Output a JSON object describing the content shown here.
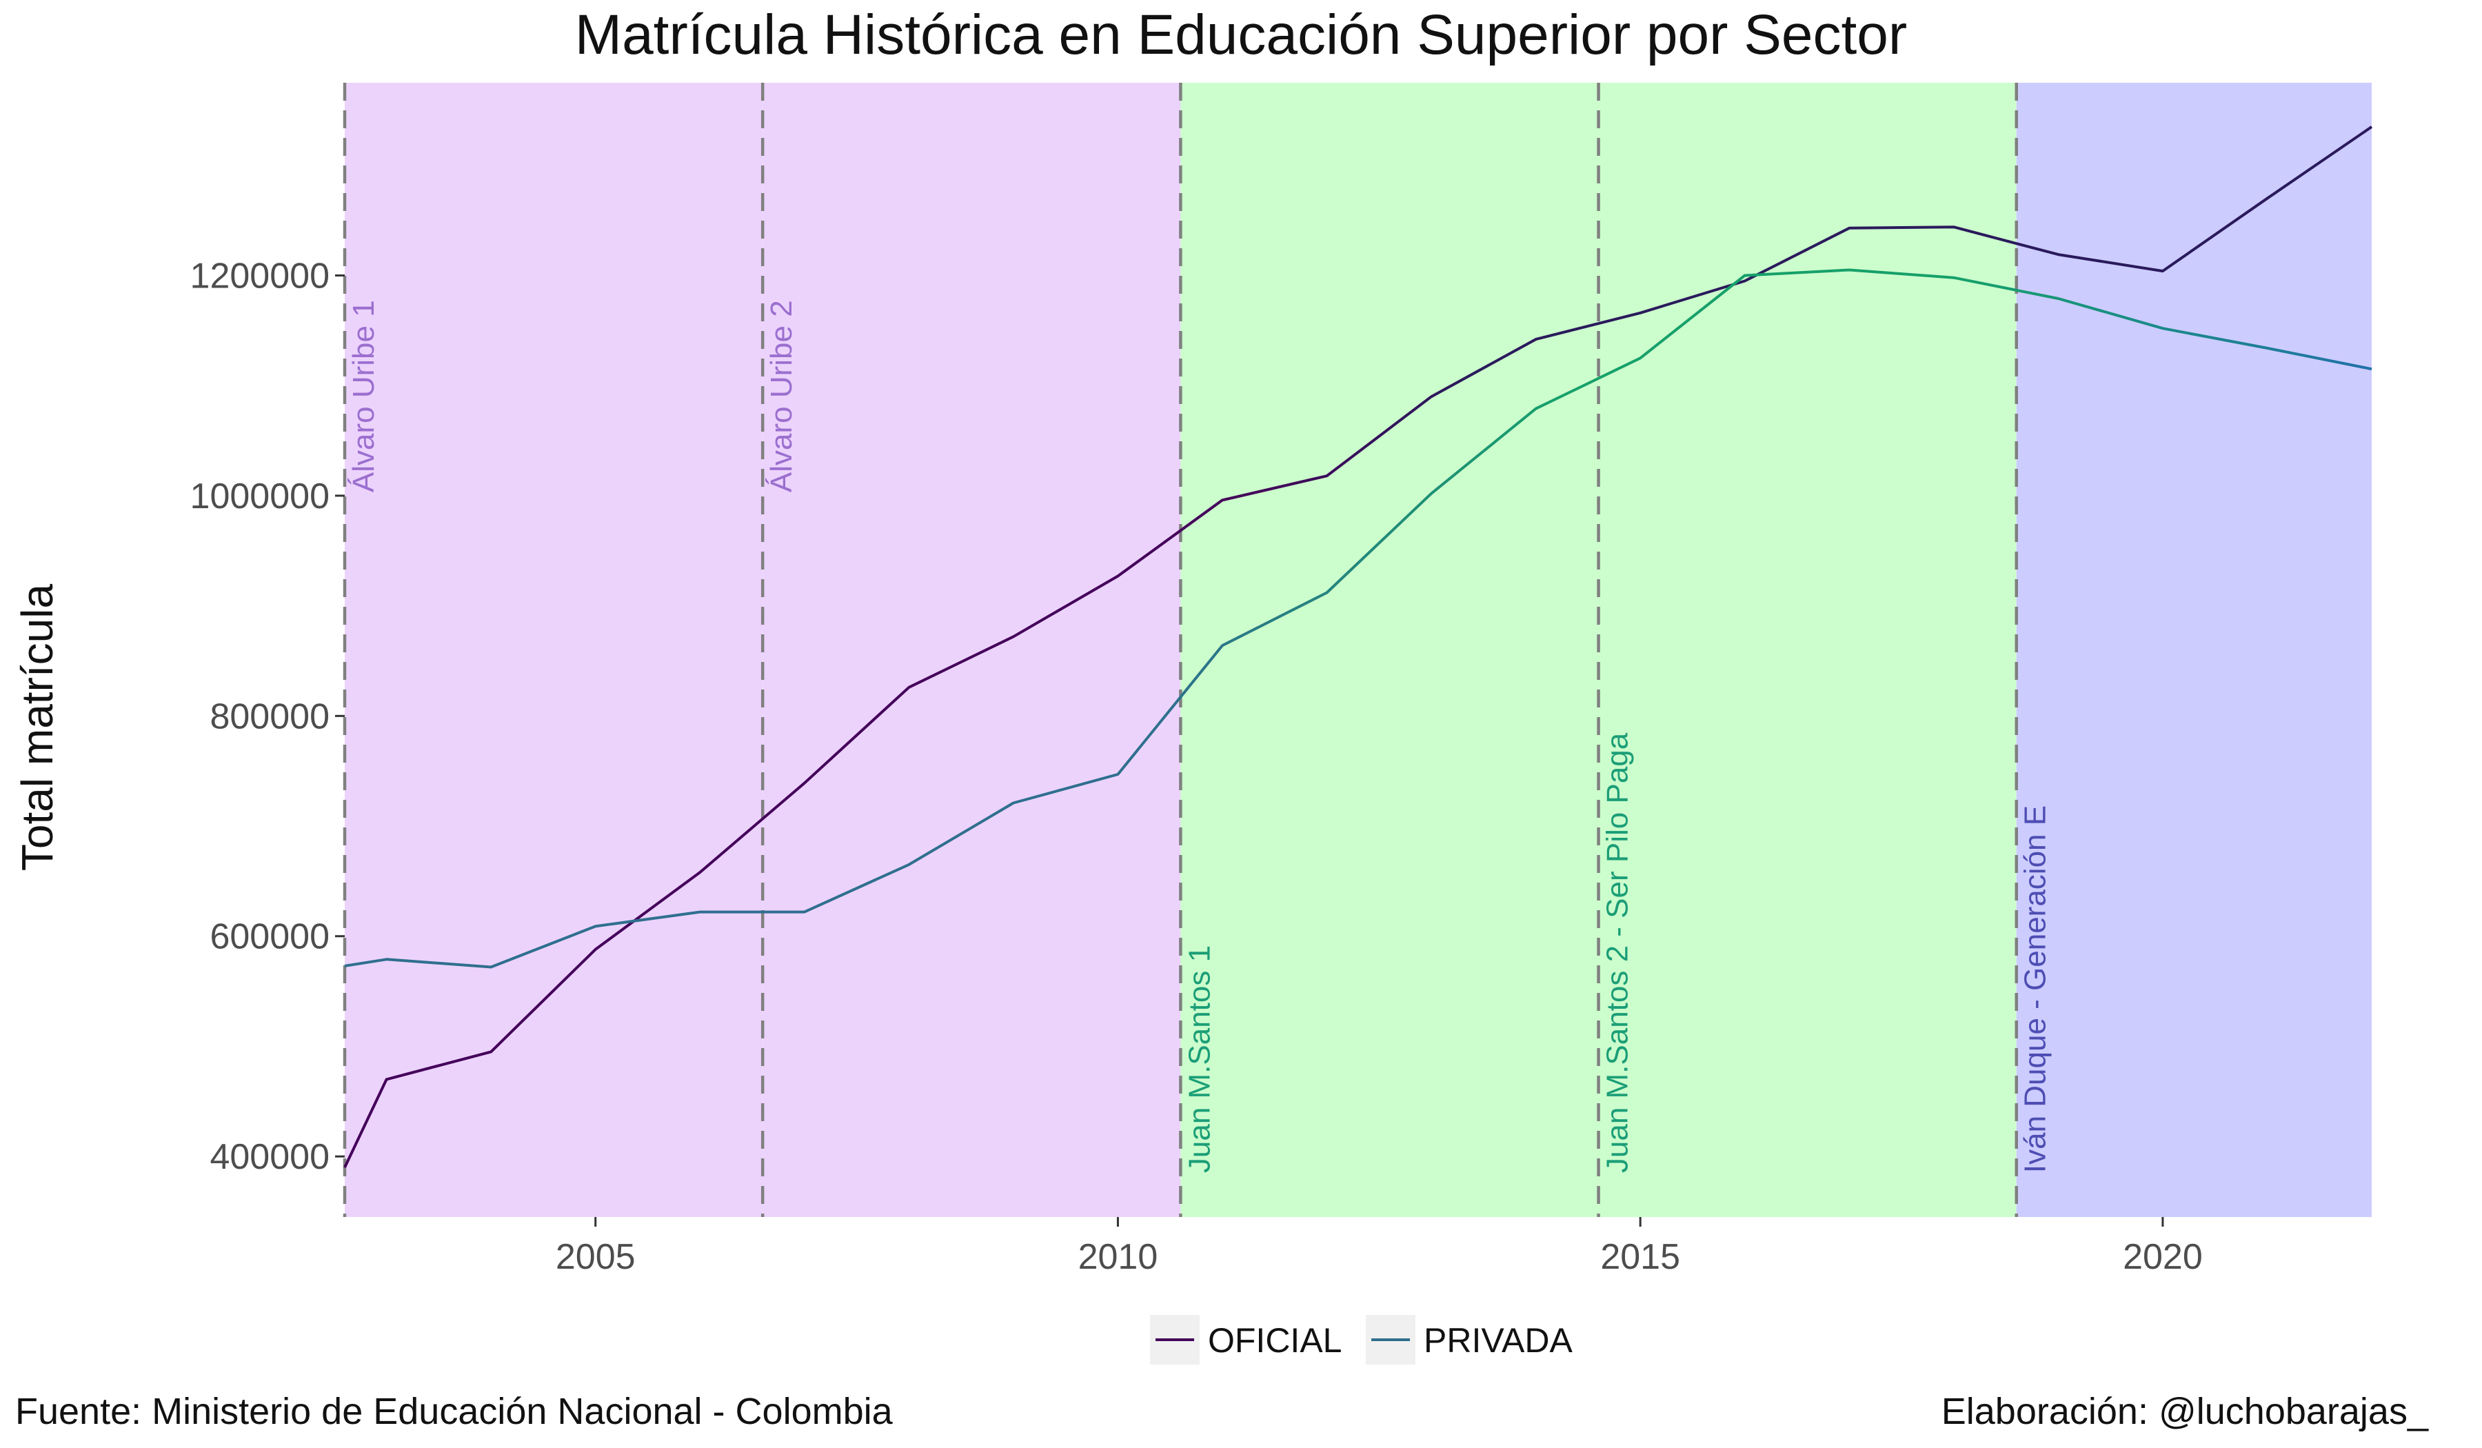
{
  "chart_data": {
    "type": "line",
    "title": "Matrícula Histórica en Educación Superior por Sector",
    "xlabel": "",
    "ylabel": "Total matrícula",
    "xlim": [
      2002.6,
      2022
    ],
    "ylim": [
      345000,
      1375000
    ],
    "x_ticks": [
      2005,
      2010,
      2015,
      2020
    ],
    "y_ticks": [
      400000,
      600000,
      800000,
      1000000,
      1200000
    ],
    "x": [
      2002.6,
      2003,
      2004,
      2005,
      2006,
      2007,
      2008,
      2009,
      2010,
      2011,
      2012,
      2013,
      2014,
      2015,
      2016,
      2017,
      2018,
      2019,
      2020,
      2021,
      2022
    ],
    "series": [
      {
        "name": "OFICIAL",
        "values": [
          390000,
          470000,
          495000,
          588000,
          658000,
          739000,
          826000,
          872000,
          927000,
          996000,
          1018000,
          1090000,
          1142000,
          1166000,
          1195000,
          1243000,
          1244000,
          1219000,
          1204000,
          1270000,
          1335000
        ]
      },
      {
        "name": "PRIVADA",
        "values": [
          573000,
          579000,
          572000,
          609000,
          622000,
          622000,
          665000,
          721000,
          747000,
          864000,
          912000,
          1002000,
          1079000,
          1125000,
          1200000,
          1205000,
          1198000,
          1179000,
          1152000,
          1134000,
          1115000
        ]
      }
    ],
    "periods": [
      {
        "label": "Álvaro Uribe 1",
        "start": 2002.6,
        "end": 2006.6,
        "fill": "#ecd3fc",
        "text_color": "#9b6fcf"
      },
      {
        "label": "Álvaro Uribe 2",
        "start": 2006.6,
        "end": 2010.6,
        "fill": "#ecd3fc",
        "text_color": "#9b6fcf"
      },
      {
        "label": "Juan M.Santos 1",
        "start": 2010.6,
        "end": 2014.6,
        "fill": "#ccfdcc",
        "text_color": "#1b9e77"
      },
      {
        "label": "Juan M.Santos 2 - Ser Pilo Paga",
        "start": 2014.6,
        "end": 2018.6,
        "fill": "#ccfdcc",
        "text_color": "#1b9e77"
      },
      {
        "label": "Iván Duque - Generación E",
        "start": 2018.6,
        "end": 2022,
        "fill": "#ccccfe",
        "text_color": "#4d4db3"
      }
    ],
    "legend": {
      "position": "bottom",
      "items": [
        "OFICIAL",
        "PRIVADA"
      ]
    },
    "grid": false,
    "colors": {
      "oficial_start": "#44015a",
      "oficial_end": "#2a1a5c",
      "privada_start": "#2f6f8e",
      "privada_mid": "#16a06a",
      "privada_end": "#2171a8",
      "vline": "#808080",
      "legend_key_bg": "#f0f0f0"
    }
  },
  "caption": {
    "source": "Fuente: Ministerio de Educación Nacional - Colombia",
    "author": "Elaboración: @luchobarajas_"
  }
}
